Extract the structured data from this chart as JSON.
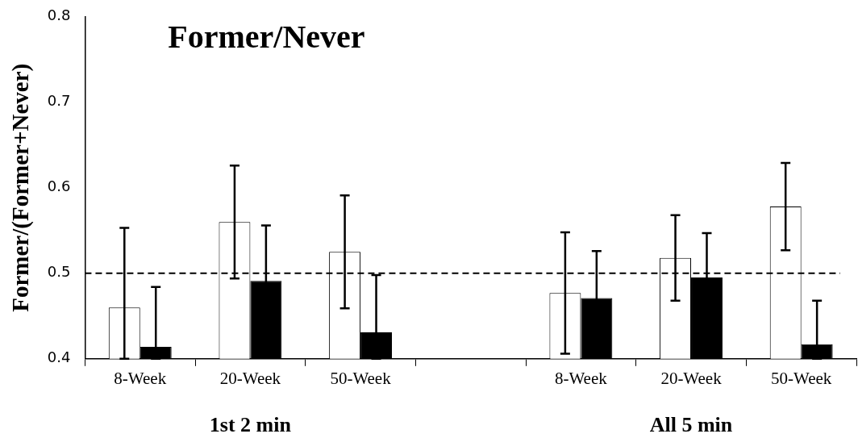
{
  "chart_data": {
    "type": "bar",
    "title": "Former/Never",
    "ylabel": "Former/(Former+Never)",
    "categories": [
      "8-Week",
      "20-Week",
      "50-Week",
      null,
      "8-Week",
      "20-Week",
      "50-Week"
    ],
    "series": [
      {
        "color": "#ffffff",
        "values": [
          0.46,
          0.56,
          0.525,
          null,
          0.477,
          0.518,
          0.578
        ],
        "errors": [
          [
            0.4,
            0.553
          ],
          0.066,
          0.066,
          null,
          0.071,
          0.05,
          0.051
        ]
      },
      {
        "color": "#000000",
        "values": [
          0.414,
          0.491,
          0.431,
          null,
          0.471,
          0.495,
          0.417
        ],
        "errors": [
          [
            0.4,
            0.484
          ],
          0.065,
          [
            0.4,
            0.498
          ],
          null,
          0.055,
          0.052,
          [
            0.4,
            0.468
          ]
        ]
      }
    ],
    "ylim": [
      0.4,
      0.8
    ],
    "yticks": [
      0.4,
      0.5,
      0.6,
      0.7,
      0.8
    ],
    "ref_lines": [
      {
        "axis": "y",
        "value": 0.5,
        "line_style": "dashed",
        "color": "#000000"
      }
    ],
    "annotations": [
      "1st 2 min",
      "All 5 min"
    ]
  }
}
